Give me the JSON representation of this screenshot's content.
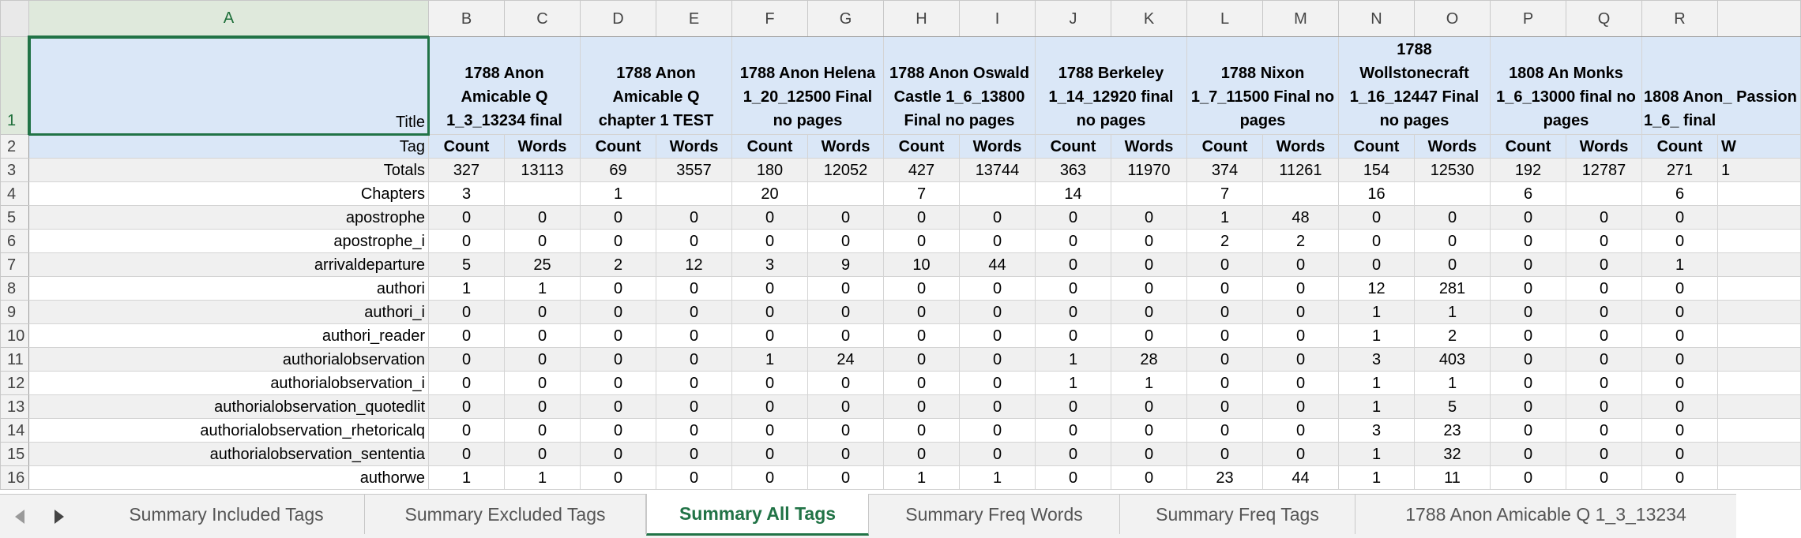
{
  "sheet": {
    "column_headers": [
      "A",
      "B",
      "C",
      "D",
      "E",
      "F",
      "G",
      "H",
      "I",
      "J",
      "K",
      "L",
      "M",
      "N",
      "O",
      "P",
      "Q",
      "R",
      ""
    ],
    "selected_column": "A",
    "active_cell": "A1",
    "rows": [
      {
        "num": "1",
        "label": "Title",
        "cells": [
          "1788 Anon Amicable Q 1_3_13234 final",
          "1788 Anon Amicable Q chapter 1 TEST",
          "1788 Anon Helena 1_20_12500 Final no pages",
          "1788 Anon Oswald Castle 1_6_13800 Final no pages",
          "1788 Berkeley 1_14_12920 final no pages",
          "1788 Nixon 1_7_11500 Final no pages",
          "1788 Wollstonecraft 1_16_12447 Final no pages",
          "1808 An Monks 1_6_13000 final no pages",
          "1808 Anon_ Passion 1_6_ final"
        ]
      },
      {
        "num": "2",
        "label": "Tag",
        "cells": [
          "Count",
          "Words",
          "Count",
          "Words",
          "Count",
          "Words",
          "Count",
          "Words",
          "Count",
          "Words",
          "Count",
          "Words",
          "Count",
          "Words",
          "Count",
          "Words",
          "Count",
          "W"
        ]
      },
      {
        "num": "3",
        "label": "Totals",
        "cells": [
          "327",
          "13113",
          "69",
          "3557",
          "180",
          "12052",
          "427",
          "13744",
          "363",
          "11970",
          "374",
          "11261",
          "154",
          "12530",
          "192",
          "12787",
          "271",
          "1"
        ]
      },
      {
        "num": "4",
        "label": "Chapters",
        "cells": [
          "3",
          "",
          "1",
          "",
          "20",
          "",
          "7",
          "",
          "14",
          "",
          "7",
          "",
          "16",
          "",
          "6",
          "",
          "6",
          ""
        ]
      },
      {
        "num": "5",
        "label": "apostrophe",
        "cells": [
          "0",
          "0",
          "0",
          "0",
          "0",
          "0",
          "0",
          "0",
          "0",
          "0",
          "1",
          "48",
          "0",
          "0",
          "0",
          "0",
          "0",
          ""
        ]
      },
      {
        "num": "6",
        "label": "apostrophe_i",
        "cells": [
          "0",
          "0",
          "0",
          "0",
          "0",
          "0",
          "0",
          "0",
          "0",
          "0",
          "2",
          "2",
          "0",
          "0",
          "0",
          "0",
          "0",
          ""
        ]
      },
      {
        "num": "7",
        "label": "arrivaldeparture",
        "cells": [
          "5",
          "25",
          "2",
          "12",
          "3",
          "9",
          "10",
          "44",
          "0",
          "0",
          "0",
          "0",
          "0",
          "0",
          "0",
          "0",
          "1",
          ""
        ]
      },
      {
        "num": "8",
        "label": "authori",
        "cells": [
          "1",
          "1",
          "0",
          "0",
          "0",
          "0",
          "0",
          "0",
          "0",
          "0",
          "0",
          "0",
          "12",
          "281",
          "0",
          "0",
          "0",
          ""
        ]
      },
      {
        "num": "9",
        "label": "authori_i",
        "cells": [
          "0",
          "0",
          "0",
          "0",
          "0",
          "0",
          "0",
          "0",
          "0",
          "0",
          "0",
          "0",
          "1",
          "1",
          "0",
          "0",
          "0",
          ""
        ]
      },
      {
        "num": "10",
        "label": "authori_reader",
        "cells": [
          "0",
          "0",
          "0",
          "0",
          "0",
          "0",
          "0",
          "0",
          "0",
          "0",
          "0",
          "0",
          "1",
          "2",
          "0",
          "0",
          "0",
          ""
        ]
      },
      {
        "num": "11",
        "label": "authorialobservation",
        "cells": [
          "0",
          "0",
          "0",
          "0",
          "1",
          "24",
          "0",
          "0",
          "1",
          "28",
          "0",
          "0",
          "3",
          "403",
          "0",
          "0",
          "0",
          ""
        ]
      },
      {
        "num": "12",
        "label": "authorialobservation_i",
        "cells": [
          "0",
          "0",
          "0",
          "0",
          "0",
          "0",
          "0",
          "0",
          "1",
          "1",
          "0",
          "0",
          "1",
          "1",
          "0",
          "0",
          "0",
          ""
        ]
      },
      {
        "num": "13",
        "label": "authorialobservation_quotedlit",
        "cells": [
          "0",
          "0",
          "0",
          "0",
          "0",
          "0",
          "0",
          "0",
          "0",
          "0",
          "0",
          "0",
          "1",
          "5",
          "0",
          "0",
          "0",
          ""
        ]
      },
      {
        "num": "14",
        "label": "authorialobservation_rhetoricalq",
        "cells": [
          "0",
          "0",
          "0",
          "0",
          "0",
          "0",
          "0",
          "0",
          "0",
          "0",
          "0",
          "0",
          "3",
          "23",
          "0",
          "0",
          "0",
          ""
        ]
      },
      {
        "num": "15",
        "label": "authorialobservation_sententia",
        "cells": [
          "0",
          "0",
          "0",
          "0",
          "0",
          "0",
          "0",
          "0",
          "0",
          "0",
          "0",
          "0",
          "1",
          "32",
          "0",
          "0",
          "0",
          ""
        ]
      },
      {
        "num": "16",
        "label": "authorwe",
        "cells": [
          "1",
          "1",
          "0",
          "0",
          "0",
          "0",
          "1",
          "1",
          "0",
          "0",
          "23",
          "44",
          "1",
          "11",
          "0",
          "0",
          "0",
          ""
        ]
      }
    ]
  },
  "tabs": [
    {
      "label": "Summary Included Tags",
      "active": false
    },
    {
      "label": "Summary Excluded Tags",
      "active": false
    },
    {
      "label": "Summary All Tags",
      "active": true
    },
    {
      "label": "Summary Freq Words",
      "active": false
    },
    {
      "label": "Summary Freq Tags",
      "active": false
    },
    {
      "label": "1788 Anon Amicable Q 1_3_13234",
      "active": false
    }
  ],
  "colors": {
    "accent": "#217346",
    "header_fill": "#dae7f7",
    "shaded_row": "#f0f0f0"
  },
  "icons": {
    "prev_sheet": "triangle-left-icon",
    "next_sheet": "triangle-right-icon"
  }
}
